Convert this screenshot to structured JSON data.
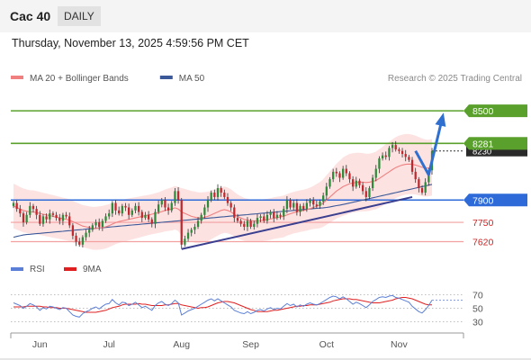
{
  "header": {
    "symbol": "Cac 40",
    "period": "DAILY",
    "datetime": "Thursday, November 13, 2025 4:59:56 PM CET"
  },
  "chart_data": {
    "type": "candlestick",
    "legend_top": [
      {
        "name": "MA 20 + Bollinger Bands",
        "color": "#f08080"
      },
      {
        "name": "MA 50",
        "color": "#3b5998"
      }
    ],
    "legend_bottom": [
      {
        "name": "RSI",
        "color": "#5b7fd6"
      },
      {
        "name": "9MA",
        "color": "#e02020"
      }
    ],
    "credit": "Research © 2025 Trading Central",
    "x_ticks": [
      {
        "label": "Jun",
        "index": 8
      },
      {
        "label": "Jul",
        "index": 29
      },
      {
        "label": "Aug",
        "index": 51
      },
      {
        "label": "Sep",
        "index": 72
      },
      {
        "label": "Oct",
        "index": 95
      },
      {
        "label": "Nov",
        "index": 117
      }
    ],
    "price_range": [
      7490,
      8640
    ],
    "levels": [
      {
        "value": 8500,
        "label": "8500",
        "kind": "resistance",
        "color": "#5aa02c",
        "style": "badge"
      },
      {
        "value": 8281,
        "label": "8281",
        "kind": "resistance",
        "color": "#5aa02c",
        "style": "badge"
      },
      {
        "value": 7900,
        "label": "7900",
        "kind": "pivot",
        "color": "#2e6bd9",
        "style": "badge"
      },
      {
        "value": 7750,
        "label": "7750",
        "kind": "support",
        "color": "#f2a0a0",
        "style": "text",
        "text_color": "#d02020"
      },
      {
        "value": 7620,
        "label": "7620",
        "kind": "support",
        "color": "#f2a0a0",
        "style": "text",
        "text_color": "#d02020"
      }
    ],
    "last_price": {
      "value": 8230,
      "label": "8230"
    },
    "trendlines": [
      {
        "from": {
          "index": 51,
          "value": 7570
        },
        "to": {
          "index": 121,
          "value": 7920
        },
        "color": "#3a3f8f"
      }
    ],
    "forecast_path": [
      {
        "index": 122,
        "value": 8230
      },
      {
        "index": 126,
        "value": 8070
      },
      {
        "index": 130,
        "value": 8440
      }
    ],
    "closes": [
      7880,
      7840,
      7810,
      7750,
      7800,
      7860,
      7840,
      7800,
      7740,
      7790,
      7770,
      7810,
      7800,
      7780,
      7760,
      7800,
      7790,
      7730,
      7660,
      7620,
      7600,
      7650,
      7680,
      7700,
      7730,
      7750,
      7720,
      7760,
      7790,
      7810,
      7880,
      7830,
      7810,
      7860,
      7850,
      7800,
      7830,
      7860,
      7820,
      7780,
      7800,
      7770,
      7740,
      7820,
      7870,
      7900,
      7850,
      7830,
      7880,
      7960,
      7900,
      7600,
      7640,
      7680,
      7700,
      7720,
      7760,
      7800,
      7850,
      7900,
      7950,
      7920,
      7980,
      7950,
      7920,
      7880,
      7850,
      7780,
      7760,
      7740,
      7720,
      7760,
      7720,
      7740,
      7780,
      7790,
      7760,
      7800,
      7820,
      7780,
      7800,
      7790,
      7840,
      7900,
      7850,
      7880,
      7820,
      7860,
      7840,
      7880,
      7900,
      7870,
      7860,
      7890,
      7930,
      7990,
      8040,
      8090,
      8080,
      8050,
      8110,
      8080,
      8040,
      7990,
      8030,
      8000,
      7960,
      7920,
      7980,
      8050,
      8110,
      8180,
      8200,
      8190,
      8250,
      8270,
      8240,
      8230,
      8210,
      8190,
      8170,
      8090,
      8040,
      7980,
      7950,
      8020,
      8100,
      8230
    ],
    "ma20": [
      7860,
      7850,
      7840,
      7830,
      7825,
      7820,
      7820,
      7815,
      7810,
      7805,
      7800,
      7795,
      7790,
      7785,
      7780,
      7775,
      7770,
      7765,
      7755,
      7745,
      7735,
      7725,
      7720,
      7715,
      7710,
      7710,
      7712,
      7715,
      7720,
      7728,
      7738,
      7748,
      7755,
      7760,
      7765,
      7770,
      7775,
      7780,
      7785,
      7790,
      7795,
      7800,
      7805,
      7810,
      7815,
      7822,
      7830,
      7835,
      7840,
      7848,
      7840,
      7820,
      7810,
      7800,
      7790,
      7785,
      7780,
      7782,
      7785,
      7790,
      7800,
      7810,
      7820,
      7830,
      7835,
      7830,
      7820,
      7805,
      7790,
      7780,
      7770,
      7765,
      7762,
      7760,
      7760,
      7762,
      7765,
      7768,
      7772,
      7778,
      7782,
      7786,
      7790,
      7800,
      7808,
      7815,
      7820,
      7825,
      7830,
      7835,
      7842,
      7850,
      7858,
      7866,
      7880,
      7900,
      7920,
      7940,
      7960,
      7975,
      7990,
      8000,
      8010,
      8015,
      8018,
      8020,
      8020,
      8018,
      8020,
      8025,
      8032,
      8045,
      8060,
      8075,
      8090,
      8105,
      8118,
      8128,
      8135,
      8140,
      8142,
      8140,
      8135,
      8128,
      8120,
      8115,
      8115,
      8120
    ],
    "ma50": [
      7650,
      7655,
      7660,
      7665,
      7668,
      7670,
      7672,
      7674,
      7676,
      7678,
      7680,
      7682,
      7684,
      7686,
      7688,
      7690,
      7692,
      7694,
      7696,
      7698,
      7700,
      7702,
      7704,
      7706,
      7708,
      7710,
      7712,
      7714,
      7716,
      7718,
      7720,
      7722,
      7724,
      7726,
      7728,
      7730,
      7732,
      7734,
      7736,
      7738,
      7740,
      7742,
      7744,
      7746,
      7748,
      7750,
      7752,
      7754,
      7756,
      7758,
      7760,
      7762,
      7764,
      7766,
      7768,
      7770,
      7772,
      7774,
      7776,
      7778,
      7780,
      7782,
      7784,
      7786,
      7788,
      7790,
      7792,
      7794,
      7796,
      7798,
      7800,
      7802,
      7804,
      7806,
      7808,
      7810,
      7812,
      7814,
      7816,
      7818,
      7820,
      7822,
      7824,
      7826,
      7828,
      7830,
      7832,
      7834,
      7836,
      7838,
      7840,
      7842,
      7844,
      7846,
      7848,
      7850,
      7854,
      7858,
      7862,
      7866,
      7870,
      7875,
      7880,
      7885,
      7890,
      7895,
      7900,
      7905,
      7910,
      7915,
      7920,
      7925,
      7930,
      7935,
      7940,
      7945,
      7950,
      7955,
      7960,
      7965,
      7970,
      7975,
      7980,
      7985,
      7990,
      7995,
      8000,
      8005
    ],
    "band_width": [
      150,
      150,
      148,
      148,
      146,
      146,
      145,
      145,
      145,
      144,
      144,
      143,
      143,
      142,
      142,
      141,
      141,
      140,
      140,
      140,
      140,
      141,
      142,
      143,
      144,
      145,
      146,
      146,
      146,
      145,
      145,
      144,
      144,
      143,
      142,
      141,
      140,
      139,
      138,
      137,
      136,
      135,
      135,
      136,
      137,
      139,
      141,
      143,
      145,
      147,
      149,
      160,
      165,
      168,
      170,
      172,
      172,
      170,
      168,
      166,
      164,
      162,
      160,
      158,
      156,
      154,
      152,
      150,
      148,
      146,
      144,
      143,
      142,
      141,
      140,
      140,
      140,
      140,
      140,
      140,
      140,
      140,
      140,
      140,
      140,
      140,
      140,
      140,
      140,
      141,
      142,
      145,
      150,
      155,
      160,
      166,
      172,
      178,
      184,
      190,
      196,
      200,
      200,
      200,
      200,
      198,
      196,
      194,
      192,
      192,
      194,
      196,
      198,
      200,
      202,
      204,
      205,
      206,
      205,
      204,
      202,
      200,
      198,
      196,
      194,
      192,
      190,
      190
    ],
    "rsi": {
      "ticks": [
        70,
        50,
        30
      ],
      "range": [
        20,
        80
      ],
      "rsi_values": [
        58,
        56,
        54,
        50,
        53,
        57,
        55,
        52,
        47,
        51,
        49,
        53,
        52,
        50,
        48,
        51,
        50,
        45,
        40,
        38,
        37,
        42,
        45,
        47,
        50,
        52,
        49,
        53,
        56,
        57,
        63,
        58,
        55,
        59,
        58,
        54,
        56,
        59,
        55,
        51,
        53,
        50,
        47,
        54,
        58,
        60,
        56,
        54,
        57,
        62,
        58,
        40,
        43,
        46,
        48,
        50,
        53,
        56,
        59,
        62,
        64,
        61,
        64,
        61,
        58,
        55,
        52,
        47,
        45,
        43,
        42,
        45,
        42,
        44,
        47,
        48,
        46,
        49,
        51,
        48,
        50,
        49,
        53,
        57,
        54,
        56,
        52,
        55,
        53,
        56,
        58,
        56,
        55,
        57,
        60,
        63,
        66,
        68,
        67,
        64,
        67,
        64,
        60,
        56,
        59,
        57,
        54,
        51,
        55,
        60,
        63,
        66,
        67,
        66,
        68,
        69,
        66,
        65,
        63,
        61,
        59,
        53,
        49,
        45,
        43,
        48,
        54,
        62
      ],
      "ma9_values": [
        52,
        52,
        52,
        52,
        53,
        53,
        53,
        53,
        53,
        52,
        52,
        51,
        51,
        51,
        50,
        50,
        50,
        49,
        48,
        47,
        46,
        45,
        44,
        44,
        44,
        44,
        45,
        46,
        47,
        49,
        51,
        52,
        53,
        55,
        56,
        56,
        56,
        56,
        57,
        56,
        56,
        55,
        54,
        54,
        54,
        54,
        55,
        55,
        56,
        57,
        57,
        55,
        54,
        53,
        52,
        51,
        50,
        51,
        51,
        52,
        54,
        56,
        58,
        59,
        60,
        60,
        59,
        58,
        56,
        54,
        52,
        50,
        48,
        47,
        45,
        45,
        45,
        45,
        46,
        47,
        47,
        48,
        49,
        50,
        51,
        52,
        53,
        53,
        54,
        54,
        55,
        55,
        55,
        56,
        57,
        58,
        59,
        61,
        62,
        63,
        64,
        64,
        64,
        63,
        63,
        62,
        61,
        60,
        59,
        58,
        58,
        58,
        59,
        60,
        61,
        62,
        64,
        65,
        66,
        66,
        65,
        64,
        62,
        60,
        58,
        56,
        55,
        55
      ]
    }
  }
}
